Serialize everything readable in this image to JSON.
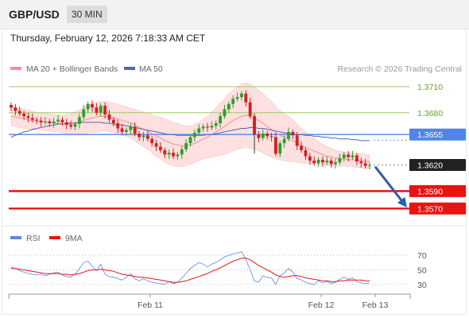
{
  "header": {
    "symbol": "GBP/USD",
    "timeframe": "30 MIN",
    "datetime": "Thursday, February 12, 2026 7:18:33 AM CET"
  },
  "legend": {
    "ma20_bb": "MA 20 + Bollinger Bands",
    "ma50": "MA 50",
    "source": "Research © 2026 Trading Central",
    "rsi": "RSI",
    "ma9": "9MA"
  },
  "colors": {
    "candle_up": "#2e9e2e",
    "candle_down": "#d42020",
    "bollinger_fill": "#fde0df",
    "ma20": "#f09090",
    "ma50": "#5566aa",
    "resistance": "#9acd60",
    "pivot": "#4f86e8",
    "support": "#e81313",
    "rsi": "#5b86e5",
    "rsi_ma": "#e81313",
    "arrow": "#2f5fa8"
  },
  "chart_data": [
    {
      "type": "candlestick",
      "title": "GBP/USD",
      "x_labels": [
        "Feb 11",
        "Feb 12",
        "Feb 13"
      ],
      "ylim": [
        1.3552,
        1.372
      ],
      "levels": [
        {
          "label": "1.3710",
          "value": 1.371,
          "kind": "resistance"
        },
        {
          "label": "1.3680",
          "value": 1.368,
          "kind": "resistance"
        },
        {
          "label": "1.3655",
          "value": 1.3655,
          "kind": "pivot"
        },
        {
          "label": "1.3620",
          "value": 1.362,
          "kind": "last"
        },
        {
          "label": "1.3590",
          "value": 1.359,
          "kind": "support"
        },
        {
          "label": "1.3570",
          "value": 1.357,
          "kind": "support"
        }
      ],
      "close": [
        1.3686,
        1.3682,
        1.3679,
        1.3676,
        1.3674,
        1.3672,
        1.3671,
        1.3669,
        1.367,
        1.3668,
        1.367,
        1.3672,
        1.3669,
        1.3666,
        1.3664,
        1.3667,
        1.3675,
        1.3684,
        1.369,
        1.3686,
        1.368,
        1.3688,
        1.3678,
        1.3672,
        1.3668,
        1.3662,
        1.3658,
        1.366,
        1.3664,
        1.3656,
        1.3652,
        1.3654,
        1.365,
        1.3645,
        1.3641,
        1.3637,
        1.3632,
        1.3634,
        1.363,
        1.3632,
        1.3638,
        1.3645,
        1.3652,
        1.3657,
        1.3662,
        1.3664,
        1.3663,
        1.3665,
        1.3668,
        1.3676,
        1.3684,
        1.369,
        1.3696,
        1.3698,
        1.3702,
        1.3692,
        1.3676,
        1.3655,
        1.3651,
        1.3656,
        1.3653,
        1.3652,
        1.3633,
        1.3645,
        1.365,
        1.3658,
        1.3654,
        1.3642,
        1.3637,
        1.363,
        1.3625,
        1.3622,
        1.3626,
        1.3623,
        1.3625,
        1.3621,
        1.3623,
        1.3628,
        1.3632,
        1.3629,
        1.3631,
        1.3624,
        1.3622,
        1.3619,
        1.362
      ],
      "ma20": [
        1.3676,
        1.3675,
        1.3674,
        1.3673,
        1.3672,
        1.3671,
        1.367,
        1.367,
        1.3669,
        1.3669,
        1.3668,
        1.3668,
        1.3667,
        1.3667,
        1.3667,
        1.3668,
        1.3669,
        1.3671,
        1.3673,
        1.3674,
        1.3675,
        1.3676,
        1.3676,
        1.3675,
        1.3674,
        1.3673,
        1.3671,
        1.367,
        1.3668,
        1.3666,
        1.3663,
        1.3661,
        1.3659,
        1.3656,
        1.3653,
        1.3651,
        1.3648,
        1.3646,
        1.3644,
        1.3643,
        1.3642,
        1.3642,
        1.3643,
        1.3645,
        1.3647,
        1.365,
        1.3652,
        1.3655,
        1.3658,
        1.3661,
        1.3664,
        1.3668,
        1.3671,
        1.3674,
        1.3676,
        1.3677,
        1.3676,
        1.3674,
        1.3671,
        1.3668,
        1.3664,
        1.3661,
        1.3657,
        1.3654,
        1.3652,
        1.365,
        1.3648,
        1.3645,
        1.3642,
        1.364,
        1.3638,
        1.3636,
        1.3634,
        1.3632,
        1.363,
        1.3629,
        1.3628,
        1.3627,
        1.3627,
        1.3626,
        1.3626,
        1.3625,
        1.3625,
        1.3624,
        1.3624
      ],
      "ma50": [
        1.3652,
        1.3654,
        1.3656,
        1.3658,
        1.3659,
        1.3661,
        1.3662,
        1.3663,
        1.3664,
        1.3665,
        1.3666,
        1.3667,
        1.3667,
        1.3668,
        1.3668,
        1.3668,
        1.3669,
        1.3669,
        1.3669,
        1.3669,
        1.3669,
        1.3669,
        1.3668,
        1.3668,
        1.3667,
        1.3666,
        1.3666,
        1.3665,
        1.3664,
        1.3663,
        1.3662,
        1.3661,
        1.366,
        1.3659,
        1.3658,
        1.3657,
        1.3656,
        1.3655,
        1.3655,
        1.3654,
        1.3654,
        1.3654,
        1.3654,
        1.3654,
        1.3654,
        1.3654,
        1.3655,
        1.3655,
        1.3656,
        1.3657,
        1.3658,
        1.3659,
        1.366,
        1.3661,
        1.3662,
        1.3662,
        1.3663,
        1.3663,
        1.3662,
        1.3662,
        1.3661,
        1.366,
        1.3659,
        1.3658,
        1.3657,
        1.3656,
        1.3656,
        1.3655,
        1.3655,
        1.3654,
        1.3654,
        1.3653,
        1.3653,
        1.3652,
        1.3652,
        1.3651,
        1.3651,
        1.365,
        1.365,
        1.365,
        1.3649,
        1.3649,
        1.3648,
        1.3648,
        1.3648
      ],
      "bb_width": [
        0.0011,
        0.0011,
        0.0011,
        0.0011,
        0.0011,
        0.0011,
        0.001,
        0.001,
        0.001,
        0.001,
        0.001,
        0.001,
        0.001,
        0.0011,
        0.0012,
        0.0013,
        0.0014,
        0.0015,
        0.0016,
        0.0017,
        0.0017,
        0.0017,
        0.0017,
        0.0017,
        0.0017,
        0.0017,
        0.0017,
        0.0017,
        0.0017,
        0.0018,
        0.0019,
        0.002,
        0.0021,
        0.0022,
        0.0023,
        0.0024,
        0.0025,
        0.0025,
        0.0025,
        0.0025,
        0.0024,
        0.0023,
        0.0022,
        0.0022,
        0.0022,
        0.0023,
        0.0024,
        0.0026,
        0.0028,
        0.003,
        0.0032,
        0.0034,
        0.0035,
        0.0036,
        0.0037,
        0.0037,
        0.0037,
        0.0036,
        0.0035,
        0.0034,
        0.0033,
        0.0032,
        0.003,
        0.0028,
        0.0027,
        0.0026,
        0.0024,
        0.0022,
        0.002,
        0.0018,
        0.0016,
        0.0015,
        0.0013,
        0.0012,
        0.0011,
        0.001,
        0.0009,
        0.0009,
        0.0008,
        0.0008,
        0.0008,
        0.0008,
        0.0008,
        0.0008,
        0.0008
      ],
      "forecast": {
        "from": 1.3618,
        "to": 1.3572
      }
    },
    {
      "type": "line",
      "title": "RSI",
      "ylim": [
        20,
        80
      ],
      "ticks": [
        70,
        50,
        30
      ],
      "tick_labels": [
        "70",
        "50",
        "30"
      ],
      "series": [
        {
          "name": "RSI",
          "values": [
            54,
            52,
            49,
            47,
            45,
            44,
            43,
            44,
            42,
            44,
            46,
            47,
            43,
            41,
            40,
            44,
            52,
            60,
            62,
            55,
            49,
            58,
            44,
            41,
            40,
            38,
            36,
            40,
            45,
            38,
            35,
            38,
            35,
            33,
            32,
            31,
            30,
            34,
            31,
            33,
            39,
            45,
            52,
            56,
            60,
            58,
            54,
            58,
            60,
            64,
            68,
            70,
            72,
            73,
            75,
            64,
            50,
            35,
            33,
            42,
            40,
            39,
            30,
            42,
            46,
            52,
            47,
            38,
            36,
            33,
            31,
            30,
            35,
            32,
            34,
            31,
            33,
            37,
            40,
            37,
            39,
            34,
            32,
            31,
            32
          ]
        },
        {
          "name": "9MA",
          "values": [
            52,
            52,
            51,
            50,
            49,
            48,
            47,
            46,
            45,
            45,
            45,
            45,
            44,
            44,
            43,
            44,
            45,
            47,
            49,
            50,
            50,
            51,
            50,
            49,
            48,
            46,
            44,
            43,
            42,
            41,
            40,
            40,
            39,
            38,
            37,
            36,
            35,
            34,
            33,
            33,
            34,
            35,
            37,
            39,
            41,
            43,
            45,
            48,
            50,
            53,
            56,
            59,
            62,
            64,
            66,
            66,
            64,
            60,
            56,
            53,
            50,
            47,
            43,
            41,
            40,
            41,
            42,
            42,
            41,
            39,
            38,
            37,
            36,
            35,
            35,
            34,
            34,
            35,
            35,
            36,
            36,
            36,
            36,
            35,
            35
          ]
        }
      ]
    }
  ]
}
